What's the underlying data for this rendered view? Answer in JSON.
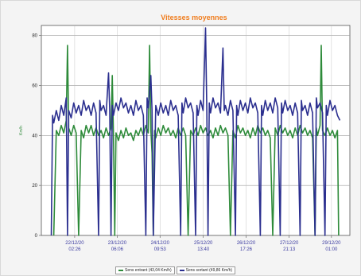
{
  "chart_data": {
    "type": "line",
    "title": "Vitesses moyennes",
    "ylabel": "Km/h",
    "xlabel": "",
    "ylim": [
      0,
      84
    ],
    "yticks": [
      0,
      20,
      40,
      60,
      80
    ],
    "grid": true,
    "legend_position": "bottom",
    "x_ticks": [
      {
        "x": 13.4,
        "date": "22/12/20",
        "time": "02:26"
      },
      {
        "x": 30.5,
        "date": "23/12/20",
        "time": "06:06"
      },
      {
        "x": 47.7,
        "date": "24/12/20",
        "time": "09:53"
      },
      {
        "x": 65.1,
        "date": "25/12/20",
        "time": "13:40"
      },
      {
        "x": 82.3,
        "date": "26/12/20",
        "time": "17:26"
      },
      {
        "x": 99.6,
        "date": "27/12/20",
        "time": "21:13"
      },
      {
        "x": 116.6,
        "date": "29/12/20",
        "time": "01:00"
      }
    ],
    "x_range": [
      0,
      124
    ],
    "series": [
      {
        "name": "Sens entrant (43,04 Km/h)",
        "color": "#2e8b3a",
        "points": [
          [
            5,
            0
          ],
          [
            6,
            42
          ],
          [
            7,
            40
          ],
          [
            8,
            44
          ],
          [
            9,
            41
          ],
          [
            10,
            46
          ],
          [
            10.5,
            76
          ],
          [
            11,
            43
          ],
          [
            12,
            40
          ],
          [
            13,
            44
          ],
          [
            14,
            41
          ],
          [
            15,
            0
          ],
          [
            16,
            42
          ],
          [
            17,
            39
          ],
          [
            18,
            44
          ],
          [
            19,
            41
          ],
          [
            20,
            44
          ],
          [
            21,
            40
          ],
          [
            22,
            43
          ],
          [
            23,
            40
          ],
          [
            24,
            42
          ],
          [
            25,
            39
          ],
          [
            26,
            43
          ],
          [
            27,
            40
          ],
          [
            28,
            43
          ],
          [
            28.5,
            64
          ],
          [
            29,
            40
          ],
          [
            29.5,
            0
          ],
          [
            30,
            41
          ],
          [
            31,
            38
          ],
          [
            32,
            42
          ],
          [
            33,
            39
          ],
          [
            34,
            43
          ],
          [
            35,
            40
          ],
          [
            36,
            41
          ],
          [
            37,
            38
          ],
          [
            38,
            42
          ],
          [
            39,
            40
          ],
          [
            40,
            43
          ],
          [
            41,
            40
          ],
          [
            42,
            44
          ],
          [
            43,
            41
          ],
          [
            43.5,
            76
          ],
          [
            44,
            42
          ],
          [
            44.5,
            33
          ],
          [
            45,
            0
          ],
          [
            45.5,
            42
          ],
          [
            46,
            39
          ],
          [
            47,
            43
          ],
          [
            48,
            40
          ],
          [
            49,
            44
          ],
          [
            50,
            41
          ],
          [
            51,
            43
          ],
          [
            52,
            40
          ],
          [
            53,
            42
          ],
          [
            54,
            39
          ],
          [
            55,
            43
          ],
          [
            56,
            40
          ],
          [
            57,
            43
          ],
          [
            58,
            40
          ],
          [
            59,
            0
          ],
          [
            60,
            42
          ],
          [
            61,
            40
          ],
          [
            62,
            43
          ],
          [
            63,
            40
          ],
          [
            64,
            44
          ],
          [
            65,
            41
          ],
          [
            66,
            43
          ],
          [
            67,
            40
          ],
          [
            68,
            42
          ],
          [
            69,
            39
          ],
          [
            70,
            43
          ],
          [
            71,
            40
          ],
          [
            72,
            44
          ],
          [
            73,
            41
          ],
          [
            74,
            43
          ],
          [
            75,
            40
          ],
          [
            76,
            0
          ],
          [
            77,
            42
          ],
          [
            78,
            39
          ],
          [
            79,
            44
          ],
          [
            80,
            41
          ],
          [
            81,
            43
          ],
          [
            82,
            40
          ],
          [
            83,
            42
          ],
          [
            84,
            39
          ],
          [
            85,
            43
          ],
          [
            86,
            40
          ],
          [
            87,
            44
          ],
          [
            88,
            41
          ],
          [
            89,
            43
          ],
          [
            90,
            40
          ],
          [
            91,
            42
          ],
          [
            92,
            39
          ],
          [
            93,
            0
          ],
          [
            94,
            43
          ],
          [
            95,
            40
          ],
          [
            96,
            44
          ],
          [
            97,
            41
          ],
          [
            98,
            43
          ],
          [
            99,
            40
          ],
          [
            100,
            42
          ],
          [
            101,
            39
          ],
          [
            102,
            43
          ],
          [
            103,
            40
          ],
          [
            104,
            44
          ],
          [
            105,
            41
          ],
          [
            106,
            43
          ],
          [
            107,
            40
          ],
          [
            108,
            42
          ],
          [
            109,
            39
          ],
          [
            110,
            0
          ],
          [
            110.5,
            43
          ],
          [
            111,
            40
          ],
          [
            112,
            44
          ],
          [
            112.5,
            76
          ],
          [
            113,
            42
          ],
          [
            114,
            40
          ],
          [
            115,
            43
          ],
          [
            116,
            40
          ],
          [
            117,
            42
          ],
          [
            118,
            39
          ],
          [
            119,
            42
          ],
          [
            119.5,
            0
          ]
        ]
      },
      {
        "name": "Sens sortant (49,86 Km/h)",
        "color": "#2b2f8f",
        "points": [
          [
            4,
            0
          ],
          [
            4.5,
            48
          ],
          [
            5,
            45
          ],
          [
            6,
            50
          ],
          [
            7,
            46
          ],
          [
            8,
            52
          ],
          [
            9,
            48
          ],
          [
            10,
            55
          ],
          [
            10.5,
            0
          ],
          [
            11,
            50
          ],
          [
            12,
            47
          ],
          [
            13,
            53
          ],
          [
            14,
            49
          ],
          [
            15,
            52
          ],
          [
            16,
            48
          ],
          [
            17,
            54
          ],
          [
            18,
            50
          ],
          [
            19,
            52
          ],
          [
            20,
            48
          ],
          [
            21,
            53
          ],
          [
            22,
            49
          ],
          [
            23,
            0
          ],
          [
            23.5,
            54
          ],
          [
            24,
            50
          ],
          [
            25,
            52
          ],
          [
            26,
            48
          ],
          [
            27,
            65
          ],
          [
            27.5,
            50
          ],
          [
            28,
            0
          ],
          [
            28.5,
            52
          ],
          [
            29,
            48
          ],
          [
            30,
            53
          ],
          [
            31,
            50
          ],
          [
            32,
            55
          ],
          [
            33,
            51
          ],
          [
            34,
            53
          ],
          [
            35,
            49
          ],
          [
            36,
            52
          ],
          [
            37,
            48
          ],
          [
            38,
            54
          ],
          [
            39,
            50
          ],
          [
            40,
            52
          ],
          [
            41,
            48
          ],
          [
            42,
            0
          ],
          [
            42.5,
            55
          ],
          [
            43,
            51
          ],
          [
            44,
            64
          ],
          [
            44.5,
            50
          ],
          [
            45,
            0
          ],
          [
            46,
            52
          ],
          [
            47,
            48
          ],
          [
            48,
            53
          ],
          [
            49,
            49
          ],
          [
            50,
            52
          ],
          [
            51,
            48
          ],
          [
            52,
            54
          ],
          [
            53,
            50
          ],
          [
            54,
            52
          ],
          [
            55,
            48
          ],
          [
            56,
            0
          ],
          [
            56.5,
            53
          ],
          [
            57,
            49
          ],
          [
            58,
            55
          ],
          [
            59,
            51
          ],
          [
            60,
            53
          ],
          [
            61,
            49
          ],
          [
            62,
            0
          ],
          [
            62.5,
            52
          ],
          [
            63,
            48
          ],
          [
            64,
            54
          ],
          [
            65,
            50
          ],
          [
            66,
            83
          ],
          [
            66.5,
            50
          ],
          [
            67,
            0
          ],
          [
            67.5,
            53
          ],
          [
            68,
            49
          ],
          [
            69,
            55
          ],
          [
            70,
            51
          ],
          [
            71,
            53
          ],
          [
            72,
            49
          ],
          [
            73,
            75
          ],
          [
            73.5,
            50
          ],
          [
            74,
            52
          ],
          [
            75,
            48
          ],
          [
            76,
            54
          ],
          [
            77,
            50
          ],
          [
            78,
            0
          ],
          [
            78.5,
            52
          ],
          [
            79,
            48
          ],
          [
            80,
            54
          ],
          [
            81,
            50
          ],
          [
            82,
            53
          ],
          [
            83,
            49
          ],
          [
            84,
            55
          ],
          [
            85,
            51
          ],
          [
            86,
            53
          ],
          [
            87,
            49
          ],
          [
            88,
            0
          ],
          [
            88.5,
            52
          ],
          [
            89,
            48
          ],
          [
            90,
            54
          ],
          [
            91,
            50
          ],
          [
            92,
            53
          ],
          [
            93,
            49
          ],
          [
            94,
            55
          ],
          [
            95,
            51
          ],
          [
            96,
            0
          ],
          [
            96.5,
            53
          ],
          [
            97,
            49
          ],
          [
            98,
            54
          ],
          [
            99,
            50
          ],
          [
            100,
            52
          ],
          [
            101,
            48
          ],
          [
            102,
            53
          ],
          [
            103,
            49
          ],
          [
            104,
            0
          ],
          [
            104.5,
            54
          ],
          [
            105,
            50
          ],
          [
            106,
            52
          ],
          [
            107,
            48
          ],
          [
            108,
            53
          ],
          [
            109,
            49
          ],
          [
            110,
            0
          ],
          [
            110.5,
            55
          ],
          [
            111,
            51
          ],
          [
            112,
            53
          ],
          [
            113,
            49
          ],
          [
            114,
            0
          ],
          [
            114.5,
            52
          ],
          [
            115,
            48
          ],
          [
            116,
            54
          ],
          [
            117,
            50
          ],
          [
            118,
            52
          ],
          [
            119,
            48
          ],
          [
            120,
            46
          ]
        ]
      }
    ]
  }
}
